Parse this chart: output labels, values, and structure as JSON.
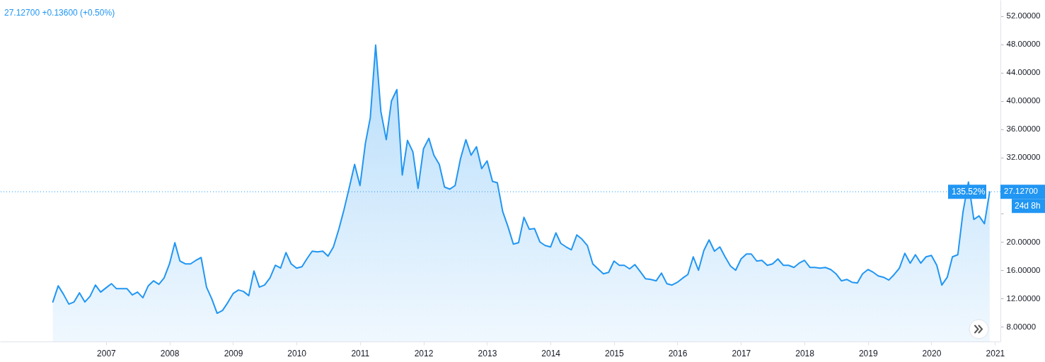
{
  "chart_data": {
    "type": "area",
    "title": "27.12700  +0.13600 (+0.50%)",
    "x": [
      "2006-03",
      "2006-04",
      "2006-05",
      "2006-06",
      "2006-07",
      "2006-08",
      "2006-09",
      "2006-10",
      "2006-11",
      "2006-12",
      "2007-01",
      "2007-02",
      "2007-03",
      "2007-04",
      "2007-05",
      "2007-06",
      "2007-07",
      "2007-08",
      "2007-09",
      "2007-10",
      "2007-11",
      "2007-12",
      "2008-01",
      "2008-02",
      "2008-03",
      "2008-04",
      "2008-05",
      "2008-06",
      "2008-07",
      "2008-08",
      "2008-09",
      "2008-10",
      "2008-11",
      "2008-12",
      "2009-01",
      "2009-02",
      "2009-03",
      "2009-04",
      "2009-05",
      "2009-06",
      "2009-07",
      "2009-08",
      "2009-09",
      "2009-10",
      "2009-11",
      "2009-12",
      "2010-01",
      "2010-02",
      "2010-03",
      "2010-04",
      "2010-05",
      "2010-06",
      "2010-07",
      "2010-08",
      "2010-09",
      "2010-10",
      "2010-11",
      "2010-12",
      "2011-01",
      "2011-02",
      "2011-03",
      "2011-04",
      "2011-05",
      "2011-06",
      "2011-07",
      "2011-08",
      "2011-09",
      "2011-10",
      "2011-11",
      "2011-12",
      "2012-01",
      "2012-02",
      "2012-03",
      "2012-04",
      "2012-05",
      "2012-06",
      "2012-07",
      "2012-08",
      "2012-09",
      "2012-10",
      "2012-11",
      "2012-12",
      "2013-01",
      "2013-02",
      "2013-03",
      "2013-04",
      "2013-05",
      "2013-06",
      "2013-07",
      "2013-08",
      "2013-09",
      "2013-10",
      "2013-11",
      "2013-12",
      "2014-01",
      "2014-02",
      "2014-03",
      "2014-04",
      "2014-05",
      "2014-06",
      "2014-07",
      "2014-08",
      "2014-09",
      "2014-10",
      "2014-11",
      "2014-12",
      "2015-01",
      "2015-02",
      "2015-03",
      "2015-04",
      "2015-05",
      "2015-06",
      "2015-07",
      "2015-08",
      "2015-09",
      "2015-10",
      "2015-11",
      "2015-12",
      "2016-01",
      "2016-02",
      "2016-03",
      "2016-04",
      "2016-05",
      "2016-06",
      "2016-07",
      "2016-08",
      "2016-09",
      "2016-10",
      "2016-11",
      "2016-12",
      "2017-01",
      "2017-02",
      "2017-03",
      "2017-04",
      "2017-05",
      "2017-06",
      "2017-07",
      "2017-08",
      "2017-09",
      "2017-10",
      "2017-11",
      "2017-12",
      "2018-01",
      "2018-02",
      "2018-03",
      "2018-04",
      "2018-05",
      "2018-06",
      "2018-07",
      "2018-08",
      "2018-09",
      "2018-10",
      "2018-11",
      "2018-12",
      "2019-01",
      "2019-02",
      "2019-03",
      "2019-04",
      "2019-05",
      "2019-06",
      "2019-07",
      "2019-08",
      "2019-09",
      "2019-10",
      "2019-11",
      "2019-12",
      "2020-01",
      "2020-02",
      "2020-03",
      "2020-04",
      "2020-05",
      "2020-06",
      "2020-07",
      "2020-08",
      "2020-09",
      "2020-10",
      "2020-11",
      "2020-12"
    ],
    "series": [
      {
        "color": "#2196f3",
        "values": [
          11.5,
          13.8,
          12.6,
          11.2,
          11.5,
          12.8,
          11.5,
          12.3,
          13.9,
          12.9,
          13.5,
          14.1,
          13.4,
          13.4,
          13.4,
          12.5,
          12.9,
          12.1,
          13.8,
          14.5,
          14.0,
          14.9,
          16.9,
          19.9,
          17.3,
          16.9,
          16.9,
          17.4,
          17.8,
          13.6,
          11.9,
          9.9,
          10.3,
          11.4,
          12.7,
          13.2,
          13.0,
          12.4,
          15.9,
          13.6,
          13.9,
          14.9,
          16.7,
          16.3,
          18.5,
          16.9,
          16.3,
          16.5,
          17.6,
          18.7,
          18.6,
          18.7,
          18.0,
          19.3,
          21.8,
          24.6,
          27.8,
          31.0,
          28.0,
          34.0,
          37.6,
          47.9,
          38.5,
          34.5,
          40.0,
          41.6,
          29.5,
          34.4,
          32.8,
          27.6,
          33.2,
          34.7,
          32.3,
          31.0,
          27.8,
          27.5,
          28.0,
          31.8,
          34.5,
          32.3,
          33.5,
          30.4,
          31.5,
          28.6,
          28.4,
          24.3,
          22.2,
          19.7,
          19.9,
          23.5,
          21.8,
          21.9,
          20.0,
          19.5,
          19.3,
          21.3,
          19.8,
          19.3,
          18.9,
          21.0,
          20.4,
          19.5,
          16.9,
          16.2,
          15.5,
          15.7,
          17.3,
          16.7,
          16.7,
          16.2,
          16.8,
          15.8,
          14.8,
          14.7,
          14.5,
          15.6,
          14.1,
          13.9,
          14.3,
          14.9,
          15.4,
          17.9,
          16.0,
          18.8,
          20.3,
          18.7,
          19.3,
          17.9,
          16.6,
          16.0,
          17.6,
          18.3,
          18.3,
          17.3,
          17.4,
          16.7,
          16.9,
          17.6,
          16.7,
          16.7,
          16.4,
          17.0,
          17.4,
          16.4,
          16.4,
          16.3,
          16.4,
          16.1,
          15.5,
          14.5,
          14.7,
          14.3,
          14.2,
          15.5,
          16.1,
          15.7,
          15.2,
          15.0,
          14.6,
          15.4,
          16.3,
          18.4,
          17.0,
          18.2,
          17.0,
          17.9,
          18.1,
          16.7,
          13.9,
          15.0,
          17.9,
          18.2,
          24.3,
          28.5,
          23.2,
          23.7,
          22.6,
          27.1
        ]
      }
    ],
    "xlim": [
      "2005-05",
      "2021-02"
    ],
    "xticks": [
      "2007",
      "2008",
      "2009",
      "2010",
      "2011",
      "2012",
      "2013",
      "2014",
      "2015",
      "2016",
      "2017",
      "2018",
      "2019",
      "2020",
      "2021"
    ],
    "ylim": [
      5.9,
      54.3
    ],
    "yticks": [
      {
        "value": 8,
        "label": "8.00000"
      },
      {
        "value": 12,
        "label": "12.00000"
      },
      {
        "value": 16,
        "label": "16.00000"
      },
      {
        "value": 20,
        "label": "20.00000"
      },
      {
        "value": 24,
        "label": null
      },
      {
        "value": 28,
        "label": null
      },
      {
        "value": 32,
        "label": "32.00000"
      },
      {
        "value": 36,
        "label": "36.00000"
      },
      {
        "value": 40,
        "label": "40.00000"
      },
      {
        "value": 44,
        "label": "44.00000"
      },
      {
        "value": 48,
        "label": "48.00000"
      },
      {
        "value": 52,
        "label": "52.00000"
      }
    ],
    "ref_lines": [
      {
        "axis": "y",
        "value": 27.127,
        "label": "27.12700",
        "color": "#2196f3",
        "line_style": "dotted"
      }
    ],
    "annotations": [
      "135.52%",
      "24d 8h"
    ],
    "grid": false,
    "marker": "none",
    "line_style": "solid"
  }
}
